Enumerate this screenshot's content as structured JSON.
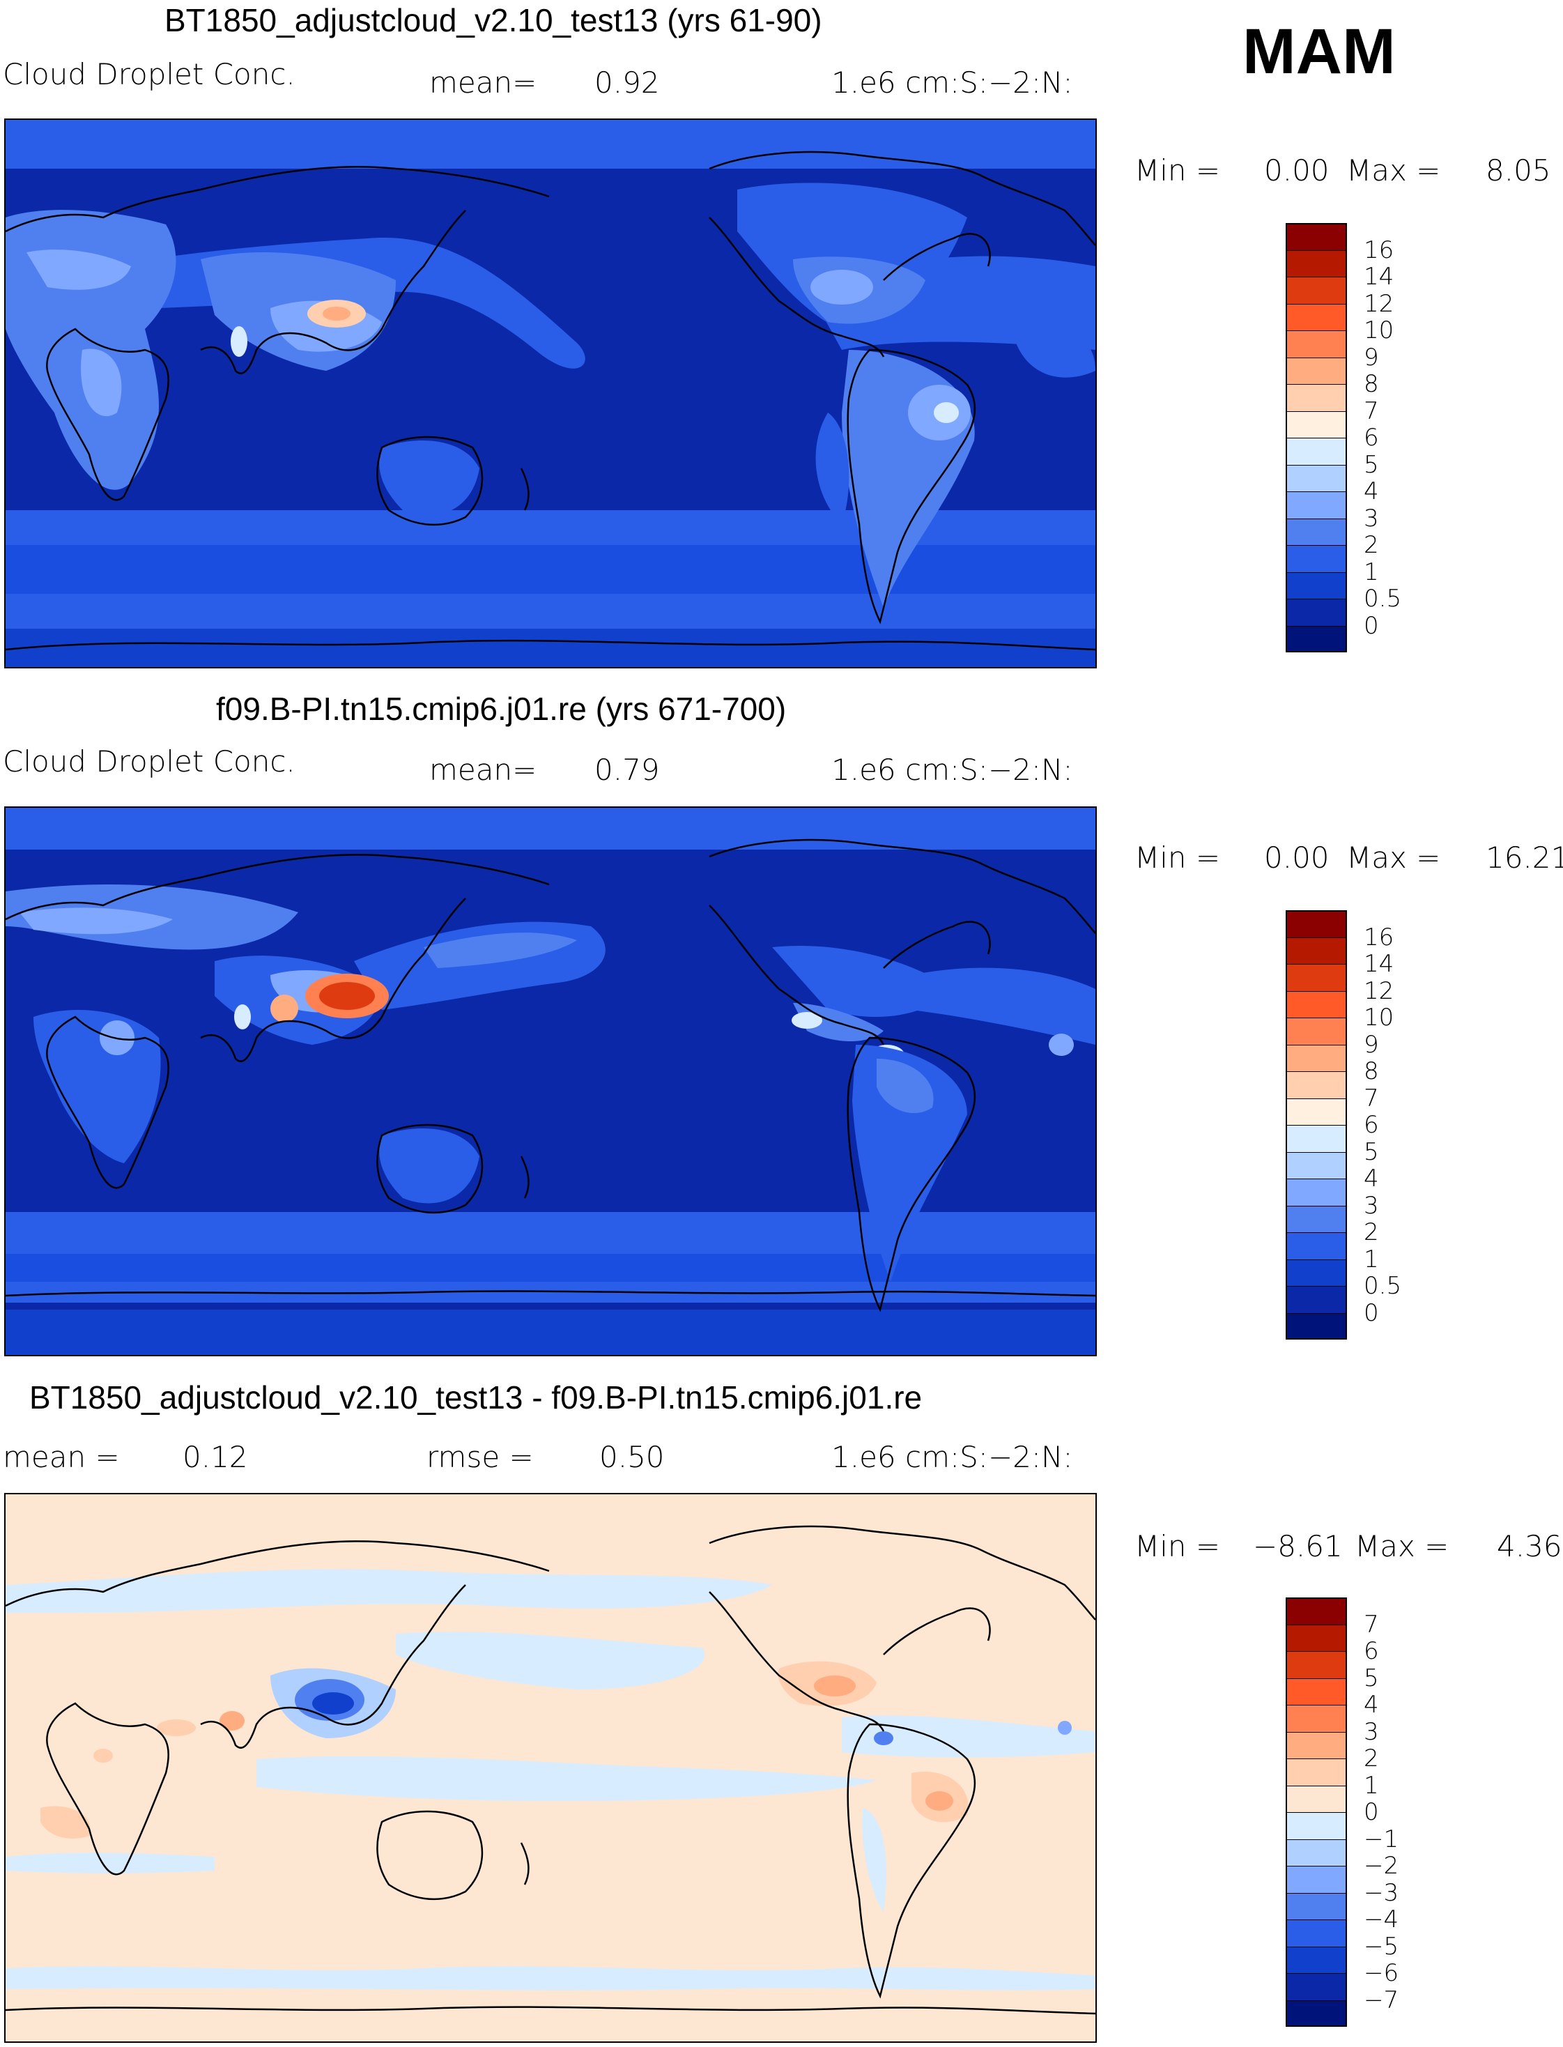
{
  "season": "MAM",
  "panels": [
    {
      "title": "BT1850_adjustcloud_v2.10_test13 (yrs 61-90)",
      "variable": "Cloud Droplet Conc.",
      "stat1": "mean=",
      "stat1_value": "0.92",
      "units": "1.e6 cm:S:−2:N:",
      "min_label": "Min =",
      "min_value": "0.00",
      "max_label": "Max =",
      "max_value": "8.05",
      "colorbar_labels": [
        "16",
        "14",
        "12",
        "10",
        "9",
        "8",
        "7",
        "6",
        "5",
        "4",
        "3",
        "2",
        "1",
        "0.5",
        "0"
      ],
      "colorbar_colors": [
        "#8b0000",
        "#b51a00",
        "#de3c10",
        "#ff5a28",
        "#ff8050",
        "#ffac80",
        "#ffcfb0",
        "#fff0e0",
        "#d8ecff",
        "#b0d0ff",
        "#80a8ff",
        "#5080f0",
        "#2a5ee8",
        "#1040cc",
        "#0a28a8",
        "#00137a"
      ]
    },
    {
      "title": "f09.B-PI.tn15.cmip6.j01.re (yrs 671-700)",
      "variable": "Cloud Droplet Conc.",
      "stat1": "mean=",
      "stat1_value": "0.79",
      "units": "1.e6 cm:S:−2:N:",
      "min_label": "Min =",
      "min_value": "0.00",
      "max_label": "Max =",
      "max_value": "16.21",
      "colorbar_labels": [
        "16",
        "14",
        "12",
        "10",
        "9",
        "8",
        "7",
        "6",
        "5",
        "4",
        "3",
        "2",
        "1",
        "0.5",
        "0"
      ],
      "colorbar_colors": [
        "#8b0000",
        "#b51a00",
        "#de3c10",
        "#ff5a28",
        "#ff8050",
        "#ffac80",
        "#ffcfb0",
        "#fff0e0",
        "#d8ecff",
        "#b0d0ff",
        "#80a8ff",
        "#5080f0",
        "#2a5ee8",
        "#1040cc",
        "#0a28a8",
        "#00137a"
      ]
    },
    {
      "title": "BT1850_adjustcloud_v2.10_test13 - f09.B-PI.tn15.cmip6.j01.re",
      "stat1": "mean =",
      "stat1_value": "0.12",
      "stat2": "rmse =",
      "stat2_value": "0.50",
      "units": "1.e6 cm:S:−2:N:",
      "min_label": "Min =",
      "min_value": "−8.61",
      "max_label": "Max =",
      "max_value": "4.36",
      "colorbar_labels": [
        "7",
        "6",
        "5",
        "4",
        "3",
        "2",
        "1",
        "0",
        "−1",
        "−2",
        "−3",
        "−4",
        "−5",
        "−6",
        "−7"
      ],
      "colorbar_colors": [
        "#8b0000",
        "#b51a00",
        "#de3c10",
        "#ff5a28",
        "#ff8050",
        "#ffac80",
        "#ffcfb0",
        "#fde6d2",
        "#d8ecff",
        "#b0d0ff",
        "#80a8ff",
        "#5080f0",
        "#2a5ee8",
        "#1040cc",
        "#0a28a8",
        "#00137a"
      ]
    }
  ]
}
